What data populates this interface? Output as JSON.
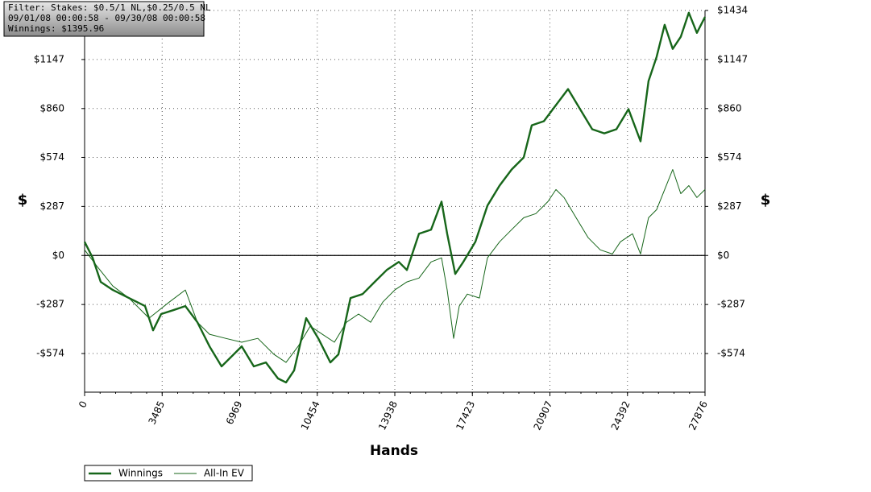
{
  "chart_data": {
    "type": "line",
    "filter": [
      "Filter: Stakes: $0.5/1 NL,$0.25/0.5 NL",
      "09/01/08 00:00:58 - 09/30/08 00:00:58",
      "Winnings: $1395.96"
    ],
    "x_label": "Hands",
    "y_label": "$",
    "y2_label": "$",
    "xlim": [
      0,
      27876
    ],
    "xticks": [
      0,
      3485,
      6969,
      10454,
      13938,
      17423,
      20907,
      24392,
      27876
    ],
    "ylim": [
      -800,
      1434
    ],
    "yticks": [
      {
        "value": 1434,
        "label": "$1434"
      },
      {
        "value": 1147,
        "label": "$1147"
      },
      {
        "value": 860,
        "label": "$860"
      },
      {
        "value": 574,
        "label": "$574"
      },
      {
        "value": 287,
        "label": "$287"
      },
      {
        "value": 0,
        "label": "$0"
      },
      {
        "value": -287,
        "label": "-$287"
      },
      {
        "value": -574,
        "label": "-$574"
      }
    ],
    "grid": true,
    "series": [
      {
        "name": "Winnings",
        "color": "#17661a",
        "width": 2.4,
        "x": [
          0,
          362,
          724,
          1267,
          1991,
          2715,
          3077,
          3439,
          3982,
          4525,
          5068,
          5611,
          6154,
          6697,
          7059,
          7602,
          8145,
          8688,
          9050,
          9412,
          9955,
          10498,
          11041,
          11403,
          11946,
          12489,
          13032,
          13575,
          14118,
          14480,
          15023,
          15566,
          16037,
          16290,
          16652,
          17014,
          17557,
          18100,
          18643,
          19186,
          19729,
          20091,
          20634,
          21177,
          21720,
          22263,
          22806,
          23349,
          23892,
          24435,
          24978,
          25340,
          25702,
          26064,
          26426,
          26788,
          27150,
          27512,
          27876
        ],
        "values": [
          80,
          -14,
          -155,
          -202,
          -249,
          -296,
          -438,
          -343,
          -320,
          -296,
          -391,
          -532,
          -649,
          -579,
          -532,
          -649,
          -626,
          -720,
          -743,
          -673,
          -367,
          -485,
          -626,
          -579,
          -249,
          -226,
          -155,
          -85,
          -38,
          -85,
          127,
          151,
          315,
          127,
          -108,
          -38,
          80,
          292,
          409,
          503,
          574,
          762,
          786,
          880,
          974,
          856,
          739,
          715,
          739,
          856,
          668,
          1021,
          1162,
          1350,
          1209,
          1280,
          1421,
          1303,
          1396
        ]
      },
      {
        "name": "All-In EV",
        "color": "#17661a",
        "width": 1,
        "x": [
          0,
          543,
          1267,
          1991,
          2896,
          3801,
          4525,
          5068,
          5611,
          6335,
          7059,
          7783,
          8507,
          9050,
          9593,
          10136,
          10679,
          11222,
          11765,
          12308,
          12851,
          13394,
          13937,
          14480,
          15023,
          15566,
          16037,
          16290,
          16580,
          16833,
          17195,
          17738,
          18100,
          18643,
          19186,
          19729,
          20272,
          20815,
          21177,
          21539,
          22082,
          22625,
          23168,
          23711,
          24073,
          24616,
          24978,
          25340,
          25702,
          26064,
          26426,
          26788,
          27150,
          27512,
          27876
        ],
        "values": [
          33,
          -61,
          -179,
          -249,
          -367,
          -273,
          -202,
          -391,
          -461,
          -485,
          -508,
          -485,
          -579,
          -626,
          -532,
          -414,
          -461,
          -508,
          -391,
          -343,
          -391,
          -273,
          -202,
          -155,
          -132,
          -38,
          -14,
          -202,
          -485,
          -296,
          -226,
          -249,
          -14,
          80,
          151,
          221,
          245,
          315,
          386,
          339,
          221,
          104,
          33,
          9,
          80,
          127,
          9,
          221,
          268,
          386,
          503,
          362,
          409,
          339,
          386
        ]
      }
    ]
  }
}
